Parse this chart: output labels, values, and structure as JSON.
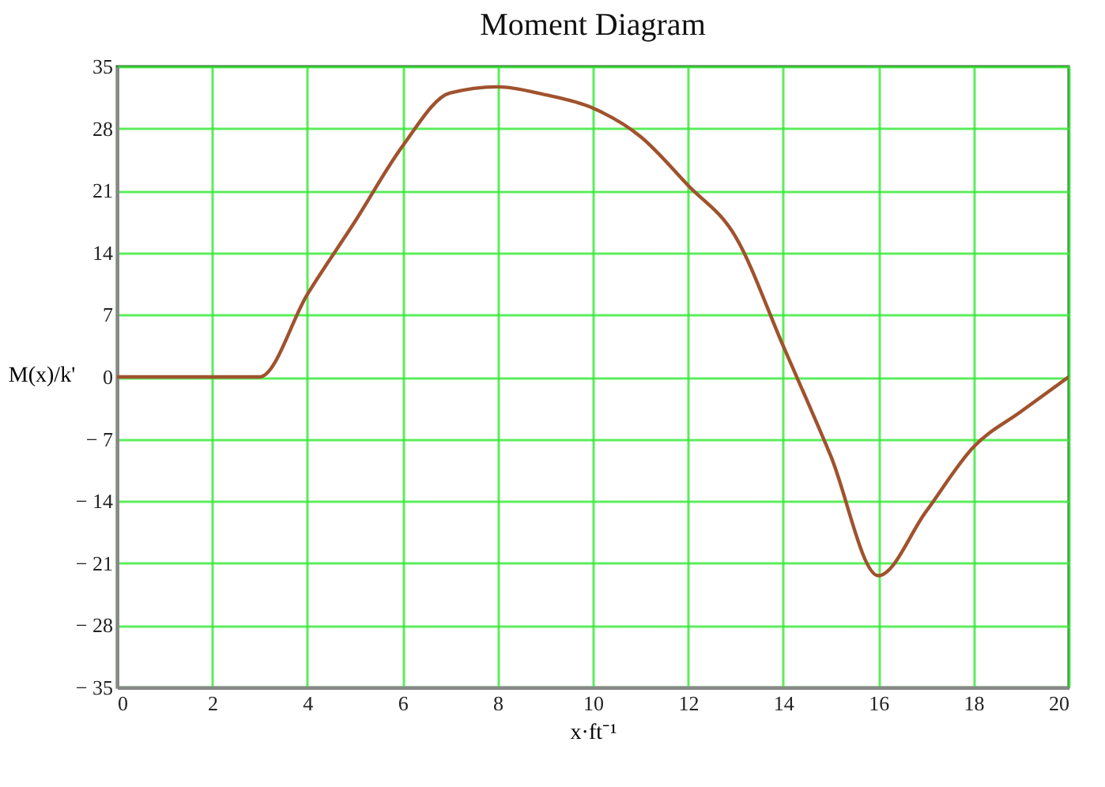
{
  "chart_data": {
    "type": "line",
    "title": "Moment Diagram",
    "xlabel": "x·ft⁻¹",
    "ylabel": "M(x)/k'",
    "x": [
      0,
      3,
      4,
      5,
      6,
      7,
      8,
      9,
      10,
      11,
      12,
      13,
      14,
      15,
      16,
      17,
      18,
      19,
      20
    ],
    "series": [
      {
        "color": "#a0522d",
        "values": [
          0,
          0,
          9.3,
          17.5,
          26.0,
          32.0,
          32.7,
          31.8,
          30.3,
          27.1,
          21.6,
          15.8,
          3.5,
          -8.9,
          -22.4,
          -15.2,
          -7.9,
          -3.9,
          0
        ]
      }
    ],
    "xlim": [
      0,
      20
    ],
    "xticks": [
      0,
      2,
      4,
      6,
      8,
      10,
      12,
      14,
      16,
      18,
      20
    ],
    "ylim": [
      -35,
      35
    ],
    "yticks": [
      {
        "value": -35,
        "label": "− 35"
      },
      {
        "value": -28,
        "label": "− 28"
      },
      {
        "value": -21,
        "label": "− 21"
      },
      {
        "value": -14,
        "label": "− 14"
      },
      {
        "value": -7,
        "label": "− 7"
      },
      0,
      7,
      14,
      21,
      28,
      35
    ],
    "grid": true,
    "marker": "none",
    "line_style": "solid"
  }
}
